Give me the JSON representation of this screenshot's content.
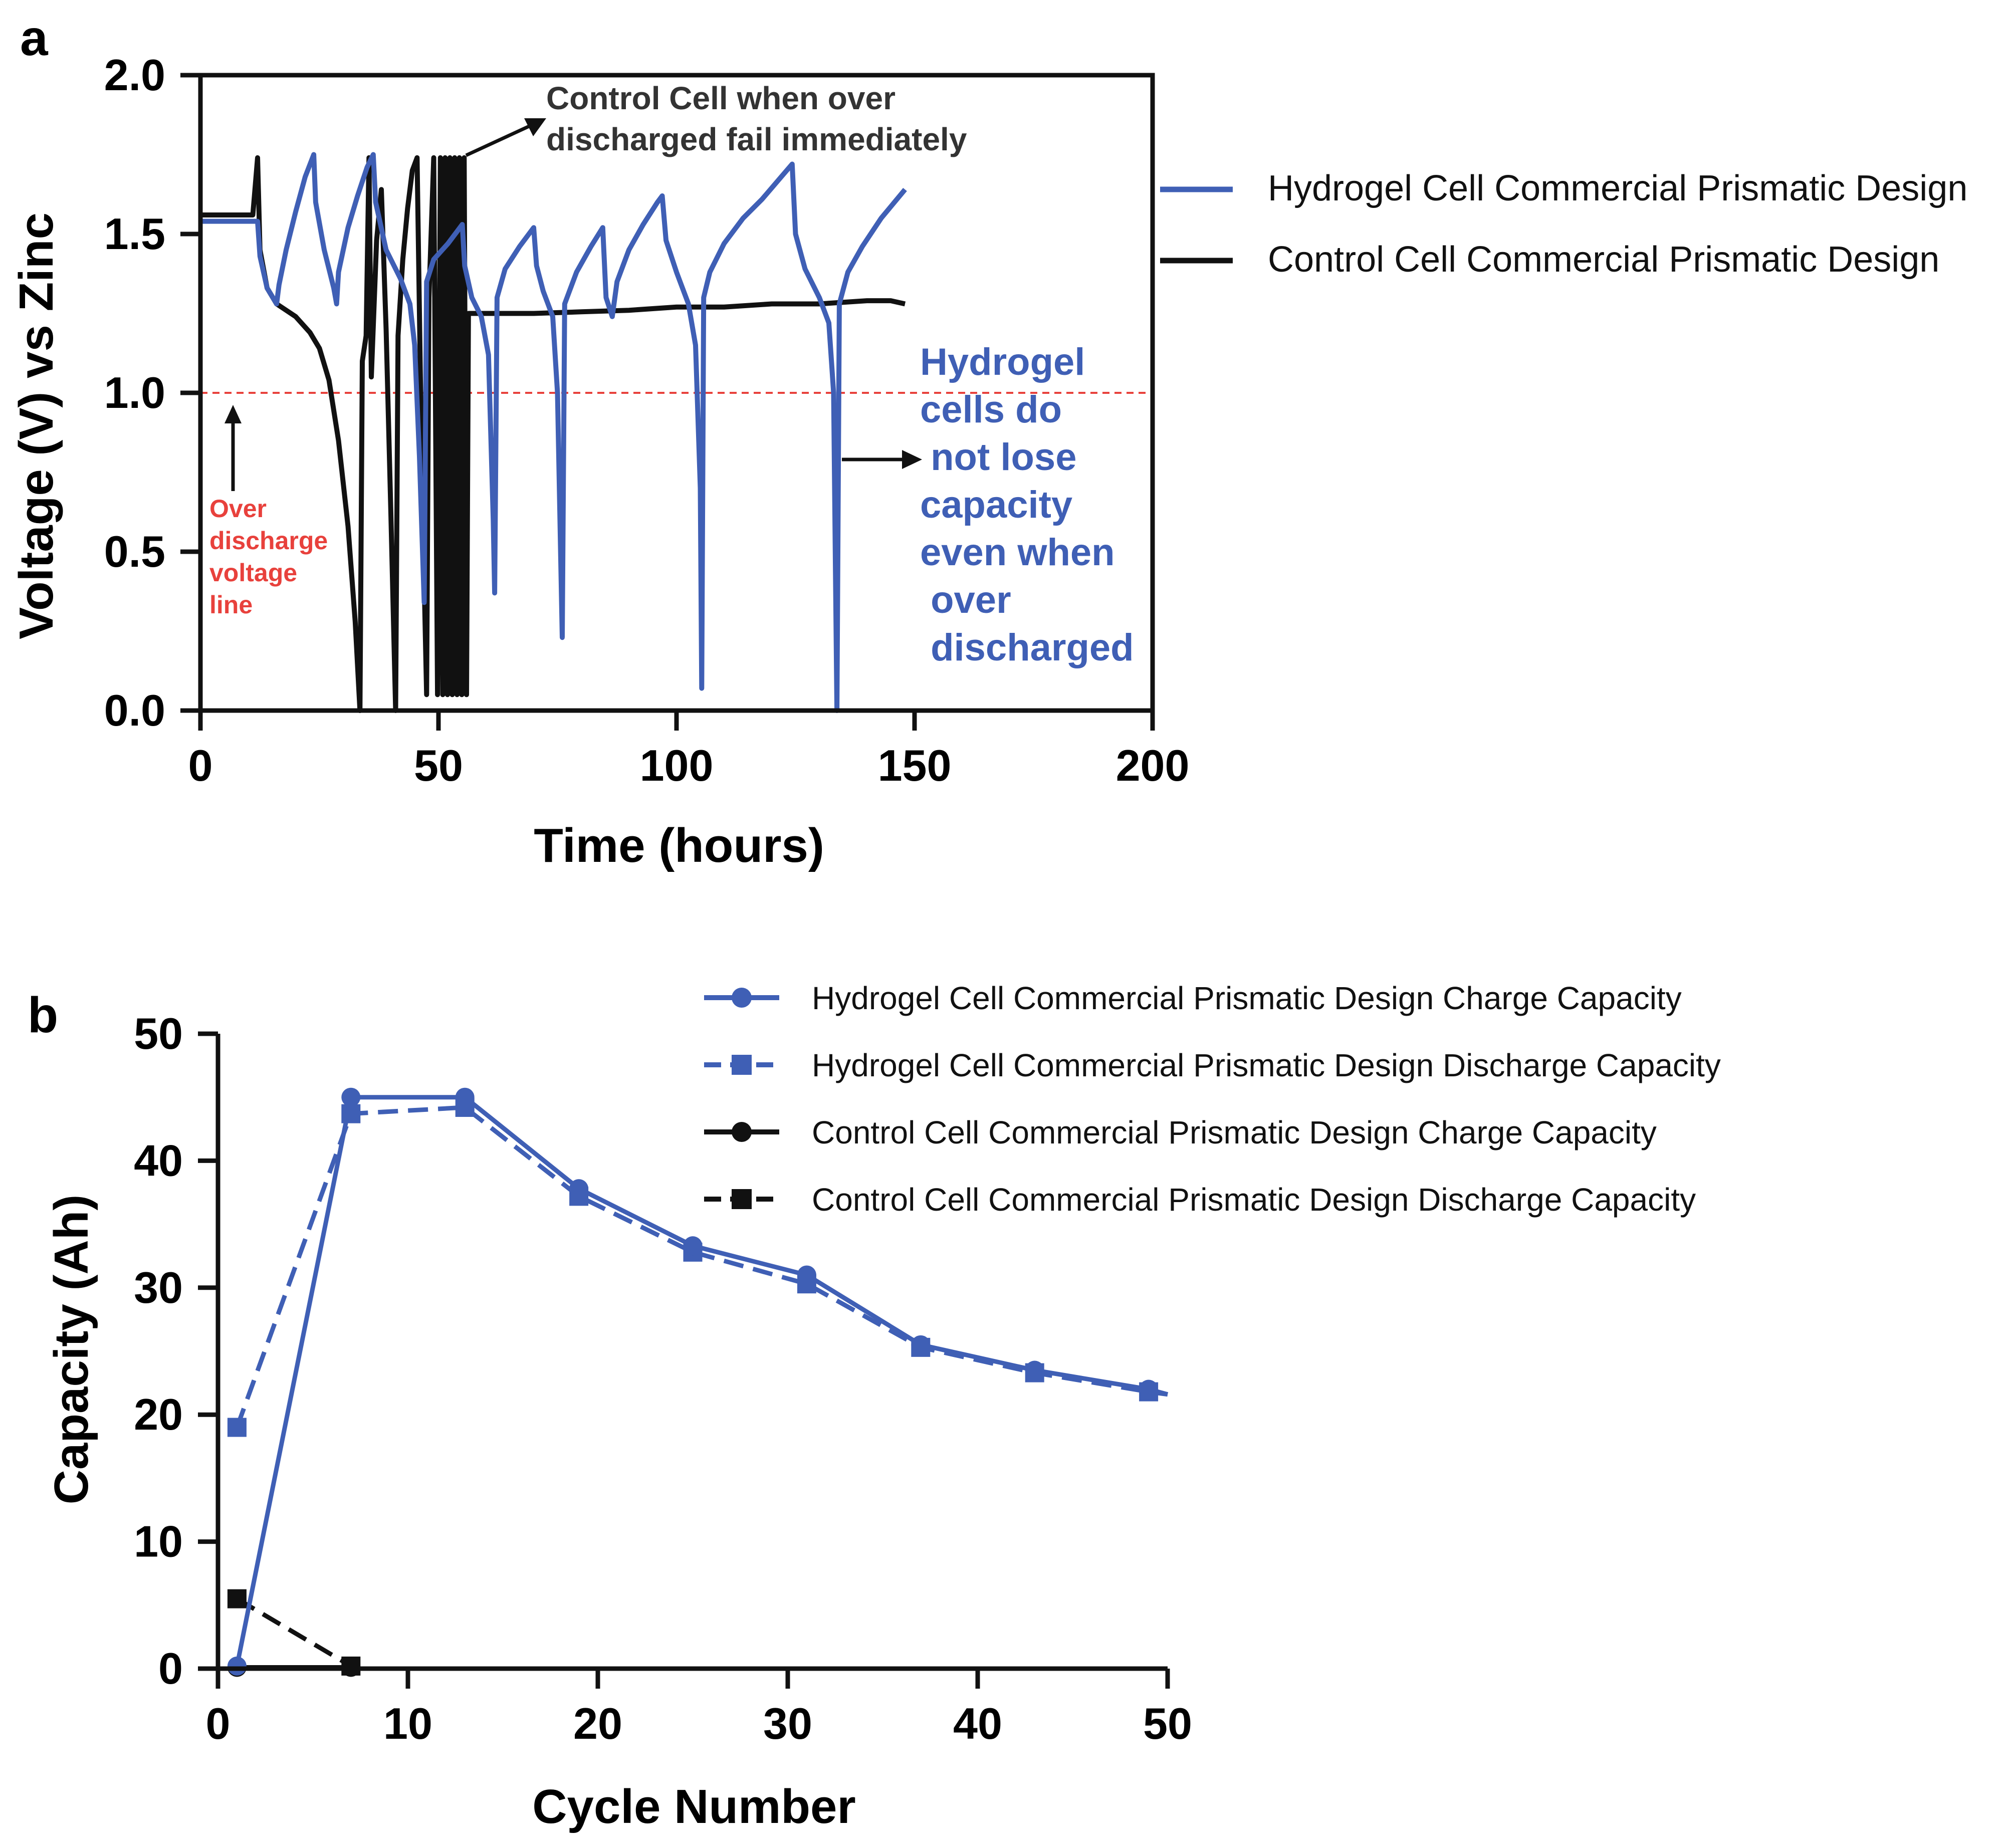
{
  "chart_data": [
    {
      "panel_label": "a",
      "type": "line",
      "xlabel": "Time (hours)",
      "ylabel": "Voltage (V) vs Zinc",
      "xlim": [
        0,
        200
      ],
      "ylim": [
        0,
        2.0
      ],
      "x_ticks": [
        "0",
        "50",
        "100",
        "150",
        "200"
      ],
      "x_tick_values": [
        0,
        50,
        100,
        150,
        200
      ],
      "y_ticks": [
        "0.0",
        "0.5",
        "1.0",
        "1.5",
        "2.0"
      ],
      "y_tick_values": [
        0,
        0.5,
        1.0,
        1.5,
        2.0
      ],
      "reference_line": {
        "y": 1.0,
        "color": "#e8413c",
        "style": "dashed"
      },
      "series": [
        {
          "name": "Hydrogel Cell Commercial Prismatic Design",
          "color": "#3f5fb5",
          "points": [
            [
              0,
              1.54
            ],
            [
              12,
              1.54
            ],
            [
              12.5,
              1.43
            ],
            [
              14,
              1.33
            ],
            [
              16,
              1.28
            ],
            [
              16.5,
              1.34
            ],
            [
              18,
              1.45
            ],
            [
              20,
              1.57
            ],
            [
              22,
              1.68
            ],
            [
              23.8,
              1.75
            ],
            [
              24.2,
              1.6
            ],
            [
              26,
              1.45
            ],
            [
              28,
              1.33
            ],
            [
              28.6,
              1.28
            ],
            [
              29,
              1.38
            ],
            [
              31,
              1.52
            ],
            [
              33,
              1.62
            ],
            [
              35,
              1.71
            ],
            [
              36.3,
              1.75
            ],
            [
              36.8,
              1.6
            ],
            [
              39,
              1.45
            ],
            [
              42,
              1.36
            ],
            [
              44,
              1.28
            ],
            [
              45,
              1.15
            ],
            [
              46,
              0.8
            ],
            [
              47,
              0.34
            ],
            [
              47.5,
              1.35
            ],
            [
              49,
              1.42
            ],
            [
              52,
              1.47
            ],
            [
              54,
              1.51
            ],
            [
              55,
              1.53
            ],
            [
              55.5,
              1.4
            ],
            [
              57,
              1.3
            ],
            [
              59,
              1.24
            ],
            [
              60.5,
              1.12
            ],
            [
              61.5,
              0.6
            ],
            [
              61.8,
              0.37
            ],
            [
              62.3,
              1.3
            ],
            [
              64,
              1.39
            ],
            [
              67,
              1.46
            ],
            [
              70,
              1.52
            ],
            [
              70.6,
              1.4
            ],
            [
              72,
              1.32
            ],
            [
              74,
              1.24
            ],
            [
              75,
              1.0
            ],
            [
              76,
              0.23
            ],
            [
              76.5,
              1.28
            ],
            [
              79,
              1.38
            ],
            [
              82,
              1.46
            ],
            [
              84.5,
              1.52
            ],
            [
              85.2,
              1.3
            ],
            [
              86.5,
              1.24
            ],
            [
              87.5,
              1.35
            ],
            [
              90,
              1.45
            ],
            [
              93,
              1.53
            ],
            [
              96,
              1.6
            ],
            [
              97,
              1.62
            ],
            [
              97.8,
              1.48
            ],
            [
              100,
              1.38
            ],
            [
              102.5,
              1.28
            ],
            [
              104,
              1.15
            ],
            [
              105,
              0.7
            ],
            [
              105.3,
              0.07
            ],
            [
              105.7,
              1.3
            ],
            [
              107,
              1.38
            ],
            [
              110,
              1.47
            ],
            [
              114,
              1.55
            ],
            [
              118,
              1.61
            ],
            [
              122,
              1.68
            ],
            [
              124.3,
              1.72
            ],
            [
              125,
              1.5
            ],
            [
              127,
              1.39
            ],
            [
              130,
              1.3
            ],
            [
              132,
              1.22
            ],
            [
              133,
              1.0
            ],
            [
              133.7,
              0.0
            ],
            [
              134.2,
              1.28
            ],
            [
              136,
              1.38
            ],
            [
              139,
              1.46
            ],
            [
              143,
              1.55
            ],
            [
              148,
              1.64
            ]
          ]
        },
        {
          "name": "Control Cell Commercial Prismatic Design",
          "color": "#111111",
          "points": [
            [
              0,
              1.56
            ],
            [
              11,
              1.56
            ],
            [
              12,
              1.74
            ],
            [
              12.5,
              1.45
            ],
            [
              14,
              1.33
            ],
            [
              16,
              1.28
            ],
            [
              20,
              1.24
            ],
            [
              23,
              1.19
            ],
            [
              25,
              1.14
            ],
            [
              27,
              1.04
            ],
            [
              29,
              0.85
            ],
            [
              31,
              0.58
            ],
            [
              32.5,
              0.28
            ],
            [
              33.5,
              0.0
            ],
            [
              34,
              1.1
            ],
            [
              34.8,
              1.18
            ],
            [
              35.4,
              1.74
            ],
            [
              35.9,
              1.05
            ],
            [
              37,
              1.48
            ],
            [
              38,
              1.64
            ],
            [
              39,
              1.2
            ],
            [
              40,
              0.62
            ],
            [
              41,
              0.0
            ],
            [
              41.5,
              1.18
            ],
            [
              42.5,
              1.42
            ],
            [
              43.5,
              1.58
            ],
            [
              44.5,
              1.7
            ],
            [
              45.5,
              1.74
            ],
            [
              46.5,
              0.75
            ],
            [
              47.5,
              0.05
            ],
            [
              48,
              1.3
            ],
            [
              49,
              1.74
            ],
            [
              49.8,
              0.05
            ],
            [
              50.4,
              1.74
            ],
            [
              50.9,
              0.05
            ],
            [
              51.4,
              1.74
            ],
            [
              51.9,
              0.05
            ],
            [
              52.4,
              1.74
            ],
            [
              52.9,
              0.05
            ],
            [
              53.4,
              1.74
            ],
            [
              53.9,
              0.05
            ],
            [
              54.4,
              1.74
            ],
            [
              54.9,
              0.05
            ],
            [
              55.4,
              1.74
            ],
            [
              55.9,
              0.05
            ],
            [
              56.3,
              1.25
            ],
            [
              60,
              1.25
            ],
            [
              70,
              1.25
            ],
            [
              80,
              1.255
            ],
            [
              90,
              1.26
            ],
            [
              100,
              1.27
            ],
            [
              110,
              1.27
            ],
            [
              120,
              1.28
            ],
            [
              130,
              1.28
            ],
            [
              140,
              1.29
            ],
            [
              145,
              1.29
            ],
            [
              148,
              1.28
            ]
          ]
        }
      ],
      "annotations": {
        "control_fail": "Control Cell when over discharged fail immediately",
        "control_fail_lines": [
          "Control Cell when over",
          "discharged fail immediately"
        ],
        "over_discharge_lines": [
          "Over",
          "discharge",
          "voltage",
          "line"
        ],
        "hydrogel_note_lines": [
          "Hydrogel",
          "cells do",
          " not lose",
          "capacity",
          "even when",
          " over",
          " discharged"
        ]
      }
    },
    {
      "panel_label": "b",
      "type": "line",
      "xlabel": "Cycle Number",
      "ylabel": "Capacity (Ah)",
      "xlim": [
        0,
        50
      ],
      "ylim": [
        0,
        50
      ],
      "x_ticks": [
        "0",
        "10",
        "20",
        "30",
        "40",
        "50"
      ],
      "x_tick_values": [
        0,
        10,
        20,
        30,
        40,
        50
      ],
      "y_ticks": [
        "0",
        "10",
        "20",
        "30",
        "40",
        "50"
      ],
      "y_tick_values": [
        0,
        10,
        20,
        30,
        40,
        50
      ],
      "legend_position": "top-right",
      "series": [
        {
          "name": "Hydrogel Cell Commercial Prismatic Design Charge Capacity",
          "color": "#3f5fb5",
          "marker": "circle",
          "line": "solid",
          "x": [
            1,
            7,
            13,
            19,
            25,
            31,
            37,
            43,
            49
          ],
          "y": [
            0.2,
            45,
            45,
            37.8,
            33.3,
            31,
            25.5,
            23.5,
            22
          ]
        },
        {
          "name": "Hydrogel Cell Commercial Prismatic Design Discharge Capacity",
          "color": "#3f5fb5",
          "marker": "square",
          "line": "dashed",
          "x": [
            1,
            7,
            13,
            19,
            25,
            31,
            37,
            43,
            49
          ],
          "y": [
            19,
            43.7,
            44.2,
            37.2,
            32.8,
            30.3,
            25.3,
            23.3,
            21.8
          ]
        },
        {
          "name": "Control Cell Commercial Prismatic Design Charge Capacity",
          "color": "#111111",
          "marker": "circle",
          "line": "solid",
          "x": [
            1,
            7
          ],
          "y": [
            0.1,
            0.1
          ]
        },
        {
          "name": "Control Cell Commercial Prismatic Design Discharge Capacity",
          "color": "#111111",
          "marker": "square",
          "line": "dashed",
          "x": [
            1,
            7
          ],
          "y": [
            5.5,
            0.2
          ]
        }
      ]
    }
  ]
}
